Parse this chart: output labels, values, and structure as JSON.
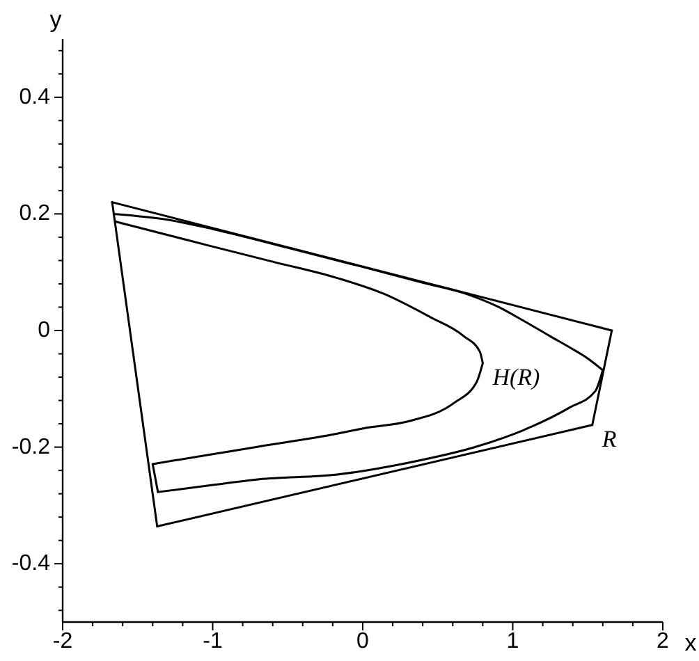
{
  "chart_data": {
    "type": "line",
    "xlabel": "x",
    "ylabel": "y",
    "xlim": [
      -2,
      2
    ],
    "ylim": [
      -0.5,
      0.5
    ],
    "xticks": [
      -2,
      {
        "value": -1.8,
        "label": null
      },
      {
        "value": -1.6,
        "label": null
      },
      {
        "value": -1.4,
        "label": null
      },
      {
        "value": -1.2,
        "label": null
      },
      -1,
      {
        "value": -0.8,
        "label": null
      },
      {
        "value": -0.6,
        "label": null
      },
      {
        "value": -0.4,
        "label": null
      },
      {
        "value": -0.2,
        "label": null
      },
      0,
      {
        "value": 0.2,
        "label": null
      },
      {
        "value": 0.4,
        "label": null
      },
      {
        "value": 0.6,
        "label": null
      },
      {
        "value": 0.8,
        "label": null
      },
      1,
      {
        "value": 1.2,
        "label": null
      },
      {
        "value": 1.4,
        "label": null
      },
      {
        "value": 1.6,
        "label": null
      },
      {
        "value": 1.8,
        "label": null
      },
      2
    ],
    "yticks": [
      {
        "value": -0.48,
        "label": null
      },
      {
        "value": -0.44,
        "label": null
      },
      -0.4,
      {
        "value": -0.36,
        "label": null
      },
      {
        "value": -0.32,
        "label": null
      },
      {
        "value": -0.28,
        "label": null
      },
      {
        "value": -0.24,
        "label": null
      },
      -0.2,
      {
        "value": -0.16,
        "label": null
      },
      {
        "value": -0.12,
        "label": null
      },
      {
        "value": -0.08,
        "label": null
      },
      {
        "value": -0.04,
        "label": null
      },
      0,
      {
        "value": 0.04,
        "label": null
      },
      {
        "value": 0.08,
        "label": null
      },
      {
        "value": 0.12,
        "label": null
      },
      {
        "value": 0.16,
        "label": null
      },
      0.2,
      {
        "value": 0.24,
        "label": null
      },
      {
        "value": 0.28,
        "label": null
      },
      {
        "value": 0.32,
        "label": null
      },
      {
        "value": 0.36,
        "label": null
      },
      0.4,
      {
        "value": 0.44,
        "label": null
      },
      {
        "value": 0.48,
        "label": null
      }
    ],
    "series": [
      {
        "color": "#000000",
        "x": [
          -1.67,
          1.66
        ],
        "values": [
          0.22,
          0
        ]
      },
      {
        "color": "#000000",
        "x": [
          1.53,
          1.66
        ],
        "values": [
          -0.162,
          0
        ]
      },
      {
        "color": "#000000",
        "x": [
          -1.67,
          -1.37
        ],
        "values": [
          0.22,
          -0.336
        ]
      },
      {
        "name": "R",
        "color": "#000000",
        "x": [
          -1.37,
          1.53
        ],
        "values": [
          -0.336,
          -0.162
        ]
      },
      {
        "color": "#000000",
        "x": [
          -1.66,
          -1.3,
          -1.0,
          -0.5,
          0.0,
          0.4,
          0.7,
          0.9,
          1.07,
          1.25,
          1.38,
          1.5,
          1.6
        ],
        "values": [
          0.2,
          0.19,
          0.174,
          0.142,
          0.109,
          0.082,
          0.062,
          0.041,
          0.017,
          -0.01,
          -0.029,
          -0.048,
          -0.068
        ]
      },
      {
        "color": "#000000",
        "x": [
          -1.365,
          -1.0,
          -0.69,
          -0.17,
          0.3,
          0.76,
          1.07,
          1.38,
          1.55,
          1.6
        ],
        "values": [
          -0.277,
          -0.265,
          -0.255,
          -0.247,
          -0.227,
          -0.199,
          -0.171,
          -0.132,
          -0.104,
          -0.068
        ]
      },
      {
        "color": "#000000",
        "x": [
          -1.4,
          -1.365
        ],
        "values": [
          -0.229,
          -0.277
        ]
      },
      {
        "color": "#000000",
        "x": [
          -1.65,
          -1.0,
          -0.6,
          -0.17,
          0.14,
          0.45,
          0.67,
          0.78,
          0.8
        ],
        "values": [
          0.187,
          0.144,
          0.118,
          0.09,
          0.063,
          0.023,
          -0.009,
          -0.036,
          -0.056
        ]
      },
      {
        "name": "H(R)",
        "color": "#000000",
        "x": [
          -1.4,
          -1.0,
          -0.69,
          -0.17,
          0.02,
          0.3,
          0.61,
          0.76,
          0.8
        ],
        "values": [
          -0.229,
          -0.212,
          -0.199,
          -0.177,
          -0.167,
          -0.156,
          -0.124,
          -0.088,
          -0.056
        ]
      }
    ]
  }
}
